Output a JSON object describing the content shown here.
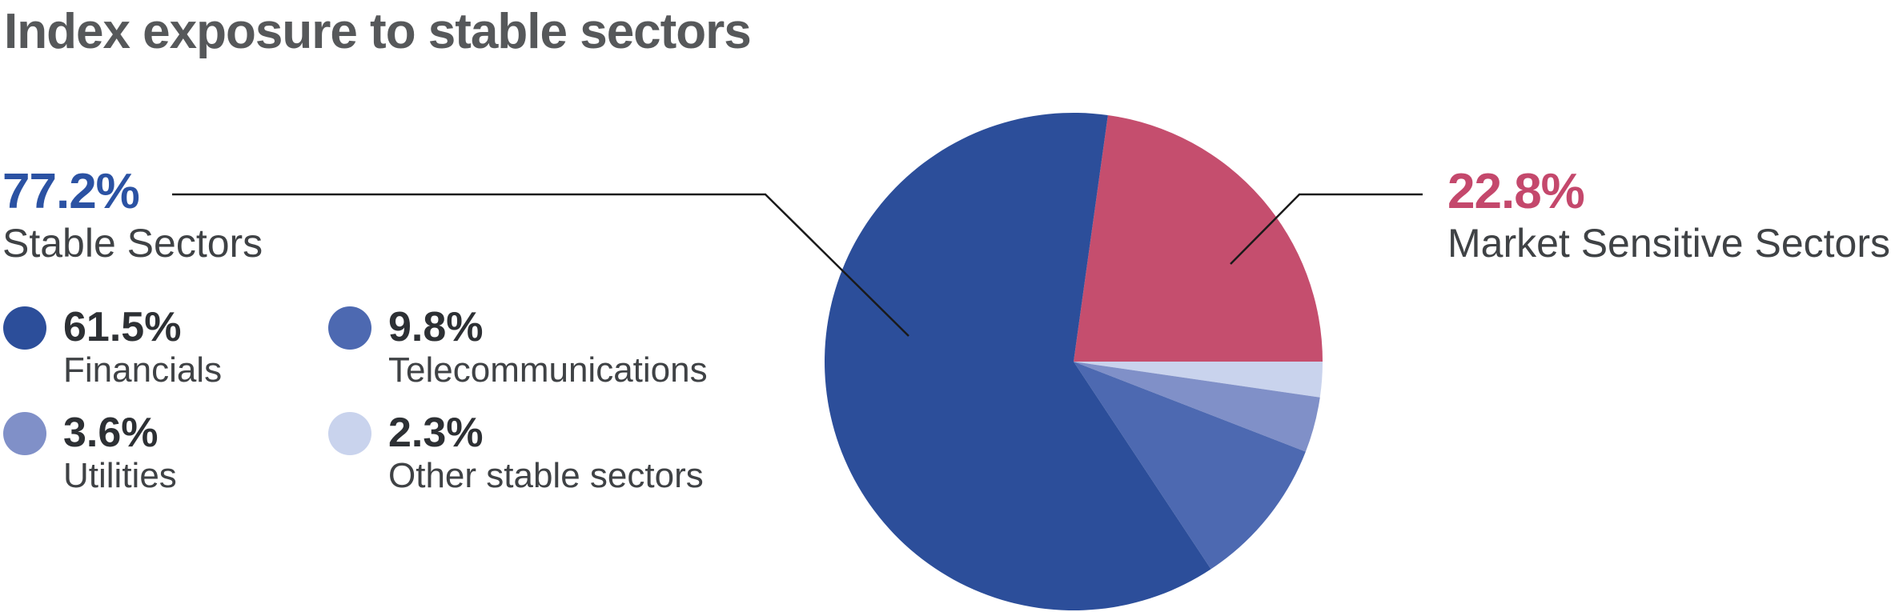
{
  "title": "Index exposure to stable sectors",
  "colors": {
    "financials": "#2C4E9A",
    "telecommunications": "#4D69B1",
    "utilities": "#8090C8",
    "other_stable": "#C9D3ED",
    "market_sensitive": "#C54E6E",
    "stable_text": "#2B52A3",
    "market_text": "#C4486C",
    "body_text": "#3F4245",
    "title_text": "#56585A",
    "callout_line": "#1a1a1a"
  },
  "callouts": {
    "left": {
      "value": "77.2%",
      "label": "Stable Sectors",
      "color": "#2B52A3"
    },
    "right": {
      "value": "22.8%",
      "label": "Market Sensitive Sectors",
      "color": "#C4486C"
    }
  },
  "legend": [
    {
      "value": "61.5%",
      "label": "Financials",
      "color": "#2C4E9A"
    },
    {
      "value": "9.8%",
      "label": "Telecommunications",
      "color": "#4D69B1"
    },
    {
      "value": "3.6%",
      "label": "Utilities",
      "color": "#8090C8"
    },
    {
      "value": "2.3%",
      "label": "Other stable sectors",
      "color": "#C9D3ED"
    }
  ],
  "chart_data": {
    "type": "pie",
    "title": "Index exposure to stable sectors",
    "start_angle_deg": 7.92,
    "direction": "clockwise",
    "slices": [
      {
        "label": "Market Sensitive Sectors",
        "value": 22.8,
        "color": "#C54E6E"
      },
      {
        "label": "Other stable sectors",
        "value": 2.3,
        "color": "#C9D3ED"
      },
      {
        "label": "Utilities",
        "value": 3.6,
        "color": "#8090C8"
      },
      {
        "label": "Telecommunications",
        "value": 9.8,
        "color": "#4D69B1"
      },
      {
        "label": "Financials",
        "value": 61.5,
        "color": "#2C4E9A"
      }
    ],
    "groups": [
      {
        "label": "Stable Sectors",
        "value": 77.2
      },
      {
        "label": "Market Sensitive Sectors",
        "value": 22.8
      }
    ],
    "legend_position": "left",
    "grid": false
  }
}
